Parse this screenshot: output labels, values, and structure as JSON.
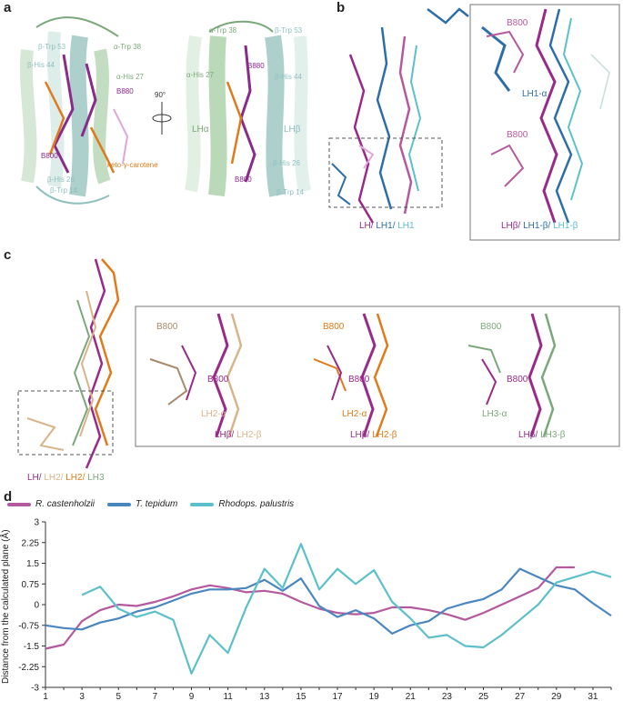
{
  "figure": {
    "panels": [
      "a",
      "b",
      "c",
      "d"
    ]
  },
  "panel_a": {
    "left_labels": [
      "β-Trp 53",
      "α-Trp 38",
      "β-His 44",
      "α-His 27",
      "B880",
      "B800",
      "β-His 26",
      "β-Trp 14",
      "keto-γ-carotene"
    ],
    "right_labels": [
      "α-Trp 38",
      "β-Trp 53",
      "B880",
      "α-His 27",
      "β-His 44",
      "LHα",
      "LHβ",
      "β-His 26",
      "B800",
      "β-Trp 14"
    ],
    "rotation": "90°"
  },
  "panel_b": {
    "legend_parts": [
      "LH/",
      "LH1/",
      "LH1"
    ],
    "inset_top_labels": [
      "B800",
      "LH1-α"
    ],
    "inset_bottom_labels": [
      "B800"
    ],
    "inset_legend_parts": [
      "LHβ/",
      "LH1-β/",
      "LH1-β"
    ]
  },
  "panel_c": {
    "legend_parts": [
      "LH/",
      "LH2/",
      "LH2/",
      "LH3"
    ],
    "inset1": {
      "b800_top": "B800",
      "b800": "B800",
      "alpha": "LH2-α",
      "beta_parts": [
        "LHβ/",
        "LH2-β"
      ]
    },
    "inset2": {
      "b800_top": "B800",
      "b800": "B800",
      "alpha": "LH2-α",
      "beta_parts": [
        "LHβ/",
        "LH2-β"
      ]
    },
    "inset3": {
      "b800_top": "B800",
      "b800": "B800",
      "alpha": "LH3-α",
      "beta_parts": [
        "LHβ/",
        "LH3-β"
      ]
    }
  },
  "colors": {
    "castenholzii": "#b5599e",
    "tepidum": "#4a87c0",
    "palustris": "#5cc0cc",
    "lh_magenta": "#9a2a8a",
    "lh_green": "#7aa87a",
    "lh2_tan": "#d9b48a",
    "lh2_orange": "#e07a1a"
  },
  "chart_data": {
    "type": "line",
    "ylabel": "Distance from the calculated plane (Å)",
    "xlabel": "",
    "x_ticks": [
      "1",
      "3",
      "5",
      "7",
      "9",
      "11",
      "13",
      "15",
      "17",
      "19",
      "21",
      "23",
      "25",
      "27",
      "29",
      "31"
    ],
    "y_ticks": [
      "2.25",
      "1.5",
      "0.75",
      "0",
      "-0.75",
      "-1.5",
      "-2.25",
      "-3"
    ],
    "extra_y_tick": "3",
    "ylim": [
      -3,
      3
    ],
    "xlim": [
      1,
      32
    ],
    "legend": "top-left",
    "series": [
      {
        "name": "R. castenholzii",
        "color": "#b5599e",
        "x": [
          1,
          2,
          3,
          4,
          5,
          6,
          7,
          8,
          9,
          10,
          11,
          12,
          13,
          14,
          15,
          16,
          17,
          18,
          19,
          20,
          21,
          22,
          23,
          24,
          25,
          26,
          27,
          28,
          29,
          30
        ],
        "y": [
          -1.6,
          -1.45,
          -0.6,
          -0.2,
          0.0,
          -0.05,
          0.1,
          0.3,
          0.55,
          0.7,
          0.6,
          0.45,
          0.5,
          0.4,
          0.1,
          -0.15,
          -0.3,
          -0.35,
          -0.3,
          -0.1,
          -0.1,
          -0.2,
          -0.35,
          -0.55,
          -0.3,
          0.0,
          0.3,
          0.6,
          1.35,
          1.35
        ]
      },
      {
        "name": "T. tepidum",
        "color": "#4a87c0",
        "x": [
          1,
          2,
          3,
          4,
          5,
          6,
          7,
          8,
          9,
          10,
          11,
          12,
          13,
          14,
          15,
          16,
          17,
          18,
          19,
          20,
          21,
          22,
          23,
          24,
          25,
          26,
          27,
          28,
          29,
          30,
          31,
          32
        ],
        "y": [
          -0.75,
          -0.85,
          -0.9,
          -0.65,
          -0.5,
          -0.25,
          -0.1,
          0.15,
          0.4,
          0.55,
          0.55,
          0.6,
          0.9,
          0.5,
          0.95,
          -0.05,
          -0.45,
          -0.2,
          -0.5,
          -1.05,
          -0.75,
          -0.6,
          -0.15,
          0.05,
          0.2,
          0.55,
          1.3,
          1.0,
          0.7,
          0.55,
          0.05,
          -0.4
        ]
      },
      {
        "name": "Rhodops. palustris",
        "color": "#5cc0cc",
        "x": [
          3,
          4,
          5,
          6,
          7,
          8,
          9,
          10,
          11,
          12,
          13,
          14,
          15,
          16,
          17,
          18,
          19,
          20,
          21,
          22,
          23,
          24,
          25,
          26,
          27,
          28,
          29,
          30,
          31,
          32
        ],
        "y": [
          0.35,
          0.65,
          -0.15,
          -0.45,
          -0.25,
          -0.55,
          -2.5,
          -1.1,
          -1.75,
          -0.1,
          1.3,
          0.6,
          2.2,
          0.55,
          1.3,
          0.75,
          1.25,
          0.1,
          -0.5,
          -1.2,
          -1.1,
          -1.5,
          -1.55,
          -1.1,
          -0.55,
          0.0,
          0.8,
          1.0,
          1.2,
          1.0
        ]
      }
    ]
  }
}
